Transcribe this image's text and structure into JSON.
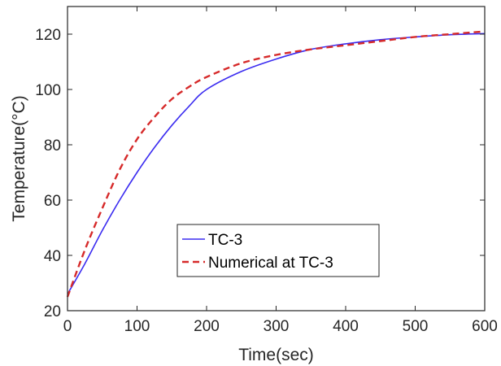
{
  "chart_data": {
    "type": "line",
    "title": "",
    "xlabel": "Time(sec)",
    "ylabel": "Temperature(°C)",
    "xlim": [
      0,
      600
    ],
    "ylim": [
      20,
      130
    ],
    "xticks": [
      0,
      100,
      200,
      300,
      400,
      500,
      600
    ],
    "yticks": [
      20,
      40,
      60,
      80,
      100,
      120
    ],
    "grid": false,
    "legend_position": "center-bottom",
    "series": [
      {
        "name": "TC-3",
        "color": "#3b2cf0",
        "style": "solid",
        "x": [
          0,
          25,
          50,
          75,
          100,
          125,
          150,
          175,
          200,
          250,
          300,
          350,
          400,
          450,
          500,
          550,
          600
        ],
        "y": [
          26,
          37,
          49,
          60,
          70,
          79,
          87,
          94,
          100,
          106.5,
          111,
          114.5,
          116.5,
          118,
          119,
          119.8,
          120.2
        ]
      },
      {
        "name": "Numerical at TC-3",
        "color": "#d62a2a",
        "style": "dashed",
        "x": [
          0,
          25,
          50,
          75,
          100,
          125,
          150,
          175,
          200,
          250,
          300,
          350,
          400,
          450,
          500,
          550,
          600
        ],
        "y": [
          25,
          42,
          57,
          71,
          82,
          90,
          96.5,
          101,
          104.5,
          109.5,
          112.5,
          114.5,
          116,
          117.5,
          119,
          120,
          121
        ]
      }
    ]
  }
}
